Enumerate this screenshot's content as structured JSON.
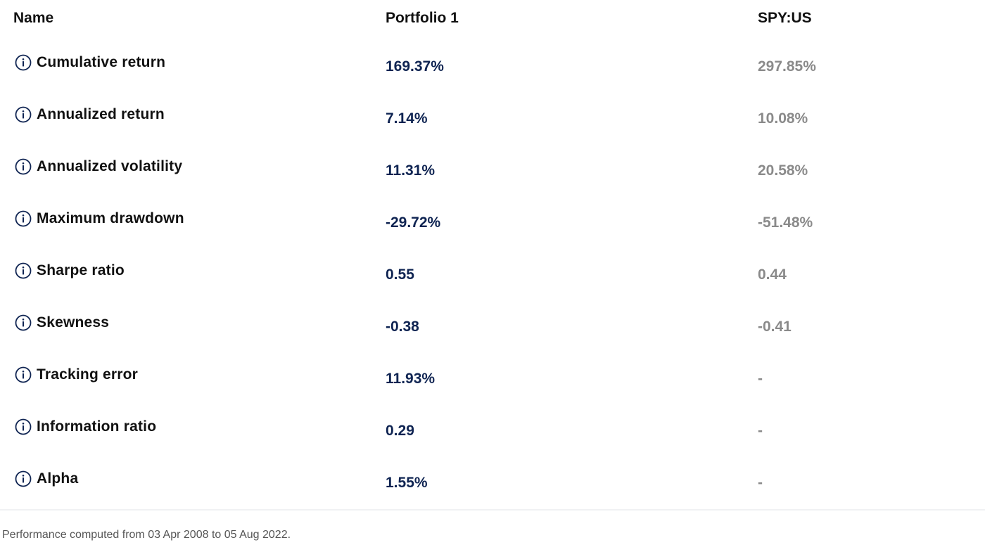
{
  "table": {
    "headers": {
      "name": "Name",
      "portfolio": "Portfolio 1",
      "benchmark": "SPY:US"
    },
    "rows": [
      {
        "label": "Cumulative return",
        "portfolio": "169.37%",
        "benchmark": "297.85%"
      },
      {
        "label": "Annualized return",
        "portfolio": "7.14%",
        "benchmark": "10.08%"
      },
      {
        "label": "Annualized volatility",
        "portfolio": "11.31%",
        "benchmark": "20.58%"
      },
      {
        "label": "Maximum drawdown",
        "portfolio": "-29.72%",
        "benchmark": "-51.48%"
      },
      {
        "label": "Sharpe ratio",
        "portfolio": "0.55",
        "benchmark": "0.44"
      },
      {
        "label": "Skewness",
        "portfolio": "-0.38",
        "benchmark": "-0.41"
      },
      {
        "label": "Tracking error",
        "portfolio": "11.93%",
        "benchmark": "-"
      },
      {
        "label": "Information ratio",
        "portfolio": "0.29",
        "benchmark": "-"
      },
      {
        "label": "Alpha",
        "portfolio": "1.55%",
        "benchmark": "-"
      }
    ],
    "icon": "info-circle-icon"
  },
  "footer": {
    "note": "Performance computed from 03 Apr 2008 to 05 Aug 2022."
  },
  "colors": {
    "portfolio_value": "#0f2452",
    "benchmark_value": "#8a8a8a",
    "icon_stroke": "#0f2452"
  }
}
